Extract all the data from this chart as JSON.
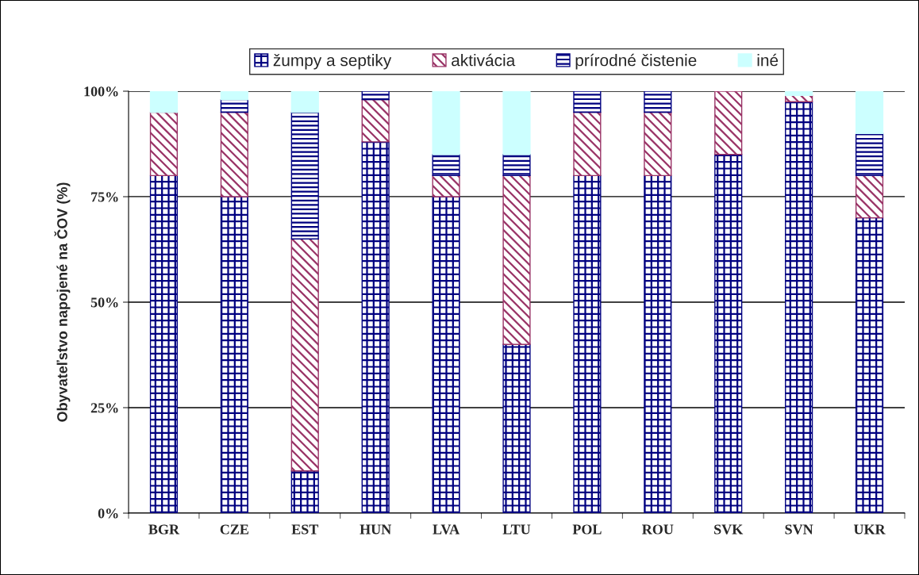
{
  "chart_data": {
    "type": "bar",
    "stacked": true,
    "ylabel": "Obyvateľstvo napojené na ČOV (%)",
    "categories": [
      "BGR",
      "CZE",
      "EST",
      "HUN",
      "LVA",
      "LTU",
      "POL",
      "ROU",
      "SVK",
      "SVN",
      "UKR"
    ],
    "series": [
      {
        "name": "žumpy a septiky",
        "color": "#000080",
        "values": [
          80,
          75,
          10,
          88,
          75,
          40,
          80,
          80,
          85,
          97.5,
          70
        ]
      },
      {
        "name": "aktivácia",
        "color": "#993366",
        "values": [
          15,
          20,
          55,
          10,
          5,
          40,
          15,
          15,
          15,
          1.5,
          10
        ]
      },
      {
        "name": "prírodné čistenie",
        "color": "#000080",
        "values": [
          0,
          3,
          30,
          2,
          5,
          5,
          5,
          5,
          0,
          0,
          10
        ]
      },
      {
        "name": "iné",
        "color": "#ccffff",
        "values": [
          5,
          2,
          5,
          0,
          15,
          15,
          0,
          0,
          0,
          1,
          10
        ]
      }
    ],
    "ylim": [
      0,
      100
    ],
    "yticks": [
      {
        "value": 0,
        "label": "0%"
      },
      {
        "value": 25,
        "label": "25%"
      },
      {
        "value": 50,
        "label": "50%"
      },
      {
        "value": 75,
        "label": "75%"
      },
      {
        "value": 100,
        "label": "100%"
      }
    ],
    "grid": "y",
    "legend": "top"
  }
}
